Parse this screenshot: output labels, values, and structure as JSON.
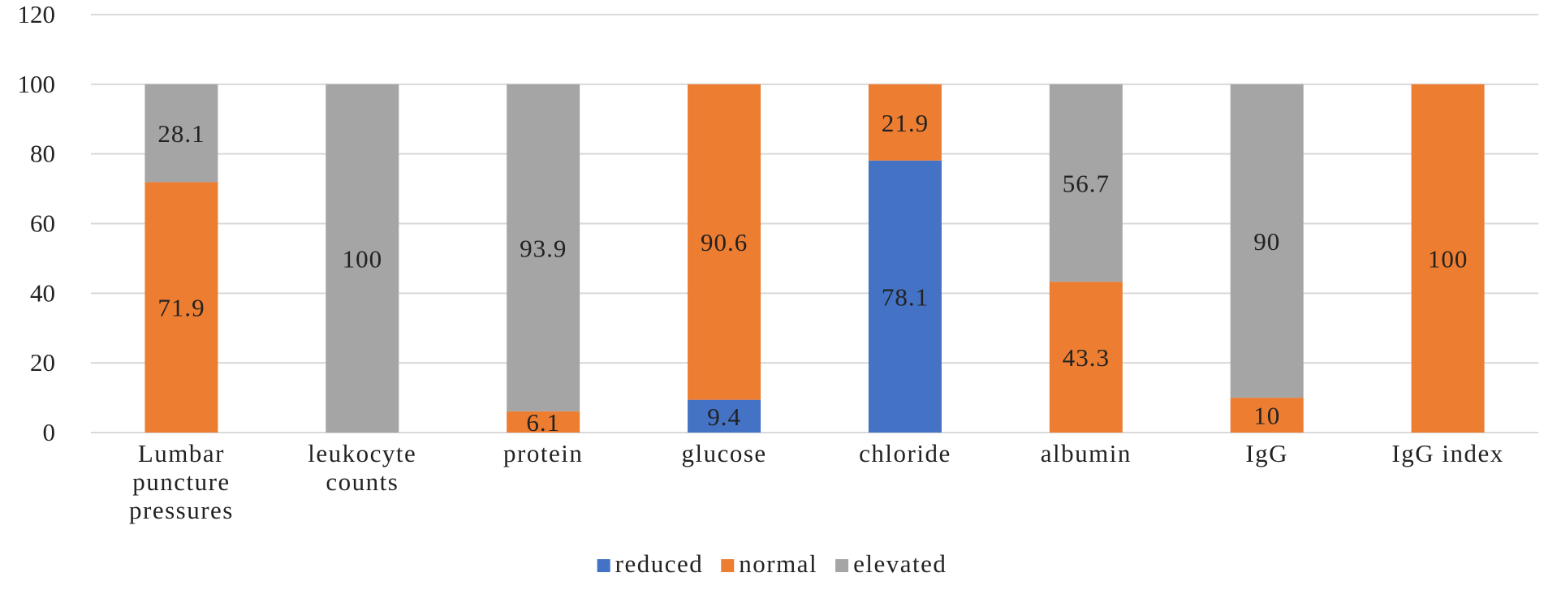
{
  "chart_data": {
    "type": "bar",
    "stacked": true,
    "title": "",
    "xlabel": "",
    "ylabel": "",
    "ylim": [
      0,
      120
    ],
    "yticks": [
      0,
      20,
      40,
      60,
      80,
      100,
      120
    ],
    "grid": true,
    "legend_position": "bottom-center",
    "categories": [
      [
        "Lumbar",
        "puncture",
        "pressures"
      ],
      [
        "leukocyte",
        "counts"
      ],
      [
        "protein"
      ],
      [
        "glucose"
      ],
      [
        "chloride"
      ],
      [
        "albumin"
      ],
      [
        "IgG"
      ],
      [
        "IgG index"
      ]
    ],
    "series": [
      {
        "name": "reduced",
        "color": "#4472c4",
        "values": [
          0,
          0,
          0,
          9.4,
          78.1,
          0,
          0,
          0
        ]
      },
      {
        "name": "normal",
        "color": "#ed7d31",
        "values": [
          71.9,
          0,
          6.1,
          90.6,
          21.9,
          43.3,
          10,
          100
        ]
      },
      {
        "name": "elevated",
        "color": "#a5a5a5",
        "values": [
          28.1,
          100,
          93.9,
          0,
          0,
          56.7,
          90,
          0
        ]
      }
    ]
  }
}
